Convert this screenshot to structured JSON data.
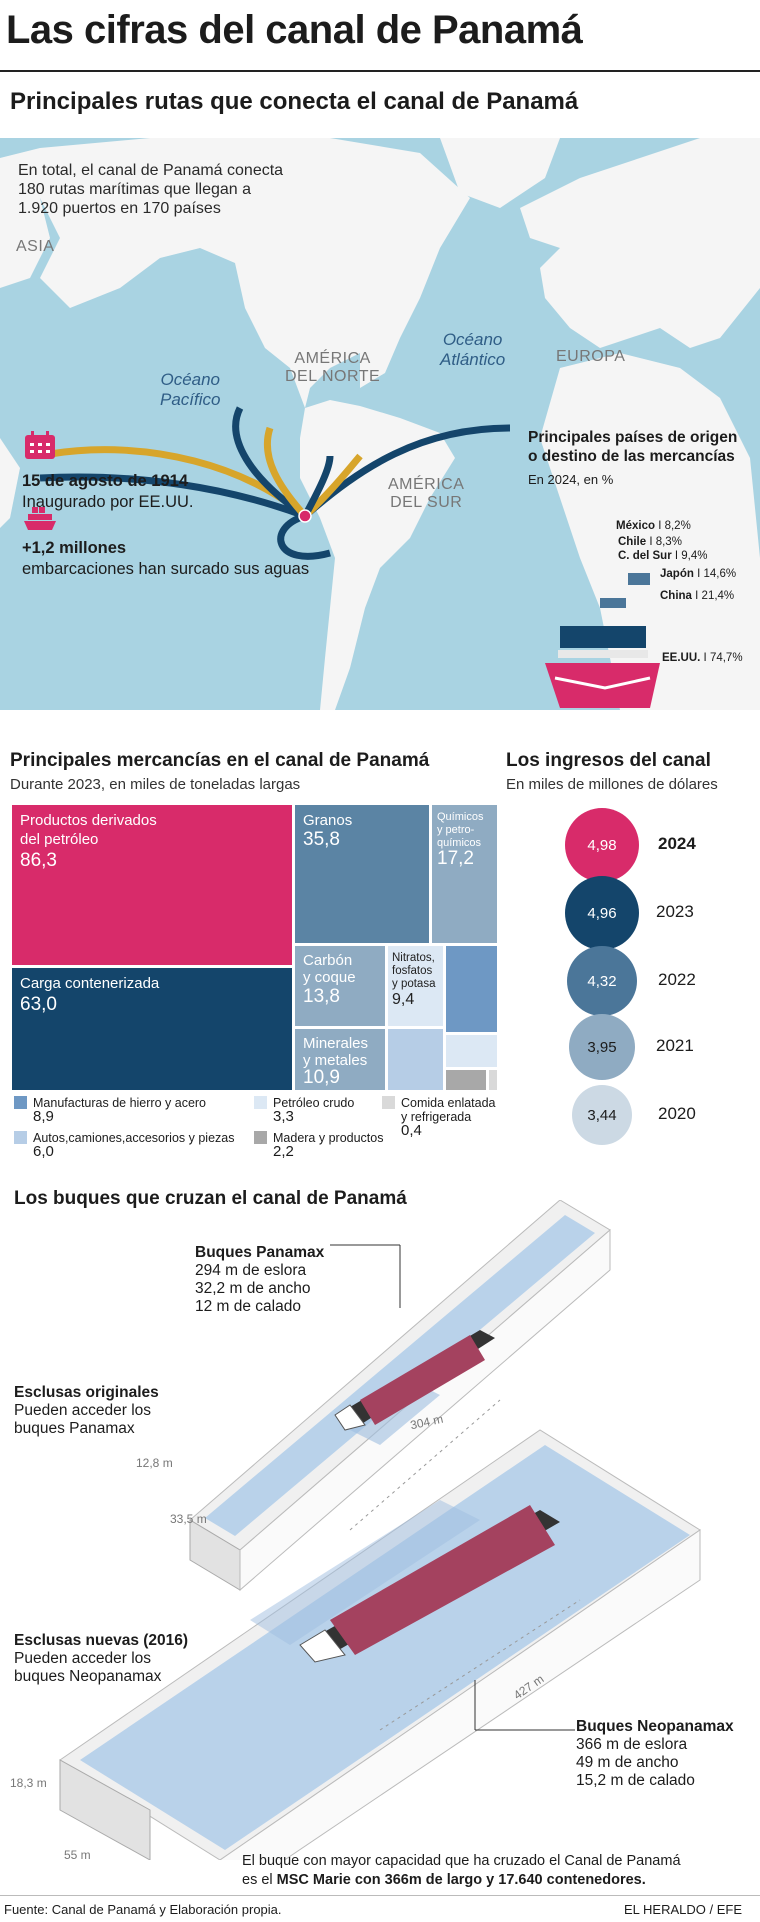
{
  "title": "Las cifras del canal de Panamá",
  "map": {
    "heading": "Principales rutas que conecta el canal de Panamá",
    "note": [
      "En total, el canal de Panamá conecta",
      "180 rutas marítimas que llegan a",
      "1.920 puertos en 170 países"
    ],
    "labels": {
      "asia": "ASIA",
      "america_norte": [
        "AMÉRICA",
        "DEL NORTE"
      ],
      "europa": "EUROPA",
      "america_sur": [
        "AMÉRICA",
        "DEL SUR"
      ],
      "oceano_pacifico": [
        "Océano",
        "Pacífico"
      ],
      "oceano_atlantico": [
        "Océano",
        "Atlántico"
      ]
    },
    "inauguration": {
      "date": "15 de agosto de 1914",
      "text": "Inaugurado por EE.UU."
    },
    "vessels": {
      "count": "+1,2 millones",
      "text": "embarcaciones han surcado sus aguas"
    },
    "countries": {
      "heading": [
        "Principales países de origen",
        "o destino de las mercancías"
      ],
      "subheading": "En 2024, en %",
      "items": [
        {
          "name": "México",
          "pct": "8,2%"
        },
        {
          "name": "Chile",
          "pct": "8,3%"
        },
        {
          "name": "C. del Sur",
          "pct": "9,4%"
        },
        {
          "name": "Japón",
          "pct": "14,6%"
        },
        {
          "name": "China",
          "pct": "21,4%"
        },
        {
          "name": "EE.UU.",
          "pct": "74,7%"
        }
      ]
    },
    "colors": {
      "ocean": "#a9d3e2",
      "land": "#f5f5f5",
      "navy": "#14456b",
      "gold": "#d7a52b",
      "magenta": "#d82b6a"
    }
  },
  "goods": {
    "heading": "Principales mercancías en el canal de Panamá",
    "subheading": "Durante 2023, en miles de toneladas largas",
    "tiles": [
      {
        "name": [
          "Productos derivados",
          "del petróleo"
        ],
        "value": "86,3"
      },
      {
        "name": [
          "Carga contenerizada"
        ],
        "value": "63,0"
      },
      {
        "name": [
          "Granos"
        ],
        "value": "35,8"
      },
      {
        "name": [
          "Químicos",
          "y petro-",
          "químicos"
        ],
        "value": "17,2"
      },
      {
        "name": [
          "Carbón",
          "y coque"
        ],
        "value": "13,8"
      },
      {
        "name": [
          "Minerales",
          "y metales"
        ],
        "value": "10,9"
      },
      {
        "name": [
          "Nitratos,",
          "fosfatos",
          "y potasa"
        ],
        "value": "9,4"
      }
    ],
    "legend": [
      {
        "name": "Manufacturas de hierro y acero",
        "value": "8,9",
        "color": "#6e98c4"
      },
      {
        "name": "Autos,camiones,accesorios y piezas",
        "value": "6,0",
        "color": "#b6cde6"
      },
      {
        "name": "Petróleo crudo",
        "value": "3,3",
        "color": "#dce8f4"
      },
      {
        "name": "Madera y productos",
        "value": "2,2",
        "color": "#a8a8a8"
      },
      {
        "name": [
          "Comida enlatada",
          "y refrigerada"
        ],
        "value": "0,4",
        "color": "#d9d9d9"
      }
    ]
  },
  "income": {
    "heading": "Los ingresos del canal",
    "subheading": "En miles de millones de dólares",
    "items": [
      {
        "year": "2024",
        "value": "4,98",
        "color": "#d82b6a"
      },
      {
        "year": "2023",
        "value": "4,96",
        "color": "#14456b"
      },
      {
        "year": "2022",
        "value": "4,32",
        "color": "#4b7699"
      },
      {
        "year": "2021",
        "value": "3,95",
        "color": "#8fabc2"
      },
      {
        "year": "2020",
        "value": "3,44",
        "color": "#ccd9e4"
      }
    ]
  },
  "ships": {
    "heading": "Los buques que cruzan el canal de Panamá",
    "panamax": {
      "title": "Buques Panamax",
      "specs": [
        "294 m de eslora",
        "32,2 m de ancho",
        "12 m de calado"
      ]
    },
    "original_locks": {
      "title": "Esclusas originales",
      "text": [
        "Pueden acceder los",
        "buques Panamax"
      ]
    },
    "new_locks": {
      "title": "Esclusas nuevas (2016)",
      "text": [
        "Pueden acceder los",
        "buques Neopanamax"
      ]
    },
    "neopanamax": {
      "title": "Buques Neopanamax",
      "specs": [
        "366 m de eslora",
        "49 m de ancho",
        "15,2 m de calado"
      ]
    },
    "dims": {
      "len1": "304 m",
      "h1": "12,8 m",
      "w1": "33,5 m",
      "len2": "427 m",
      "h2": "18,3 m",
      "w2": "55 m"
    },
    "footnote": [
      "El buque con mayor capacidad que ha cruzado el Canal de Panamá",
      "es el MSC Marie con 366m de largo y 17.640 contenedores."
    ],
    "footnote_bold": "MSC Marie con 366m de largo y 17.640 contenedores."
  },
  "footer": {
    "source": "Fuente: Canal de Panamá y Elaboración propia.",
    "credit": "EL HERALDO / EFE"
  }
}
